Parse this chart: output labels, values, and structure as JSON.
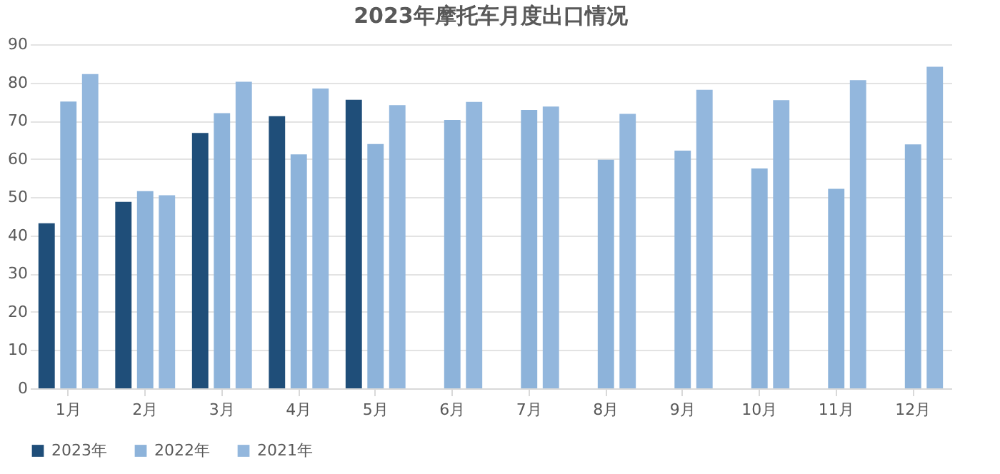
{
  "chart_data": {
    "type": "bar",
    "title": "2023年摩托车月度出口情况",
    "categories": [
      "1月",
      "2月",
      "3月",
      "4月",
      "5月",
      "6月",
      "7月",
      "8月",
      "9月",
      "10月",
      "11月",
      "12月"
    ],
    "series": [
      {
        "name": "2023年",
        "color": "#1f4e79",
        "values": [
          43.2,
          48.8,
          66.8,
          71.2,
          75.5,
          null,
          null,
          null,
          null,
          null,
          null,
          null
        ]
      },
      {
        "name": "2022年",
        "color": "#8db3da",
        "values": [
          75,
          51.6,
          72,
          61.2,
          63.9,
          70.2,
          72.8,
          59.8,
          62.2,
          57.5,
          52.2,
          63.8
        ]
      },
      {
        "name": "2021年",
        "color": "#93b7dd",
        "values": [
          82.2,
          50.5,
          80.2,
          78.4,
          74.1,
          74.9,
          73.7,
          71.8,
          78.1,
          75.4,
          80.6,
          84.1
        ]
      }
    ],
    "ylim": [
      0,
      90
    ],
    "yticks": [
      0,
      10,
      20,
      30,
      40,
      50,
      60,
      70,
      80,
      90
    ],
    "grid": "y",
    "legend": "bottom"
  }
}
